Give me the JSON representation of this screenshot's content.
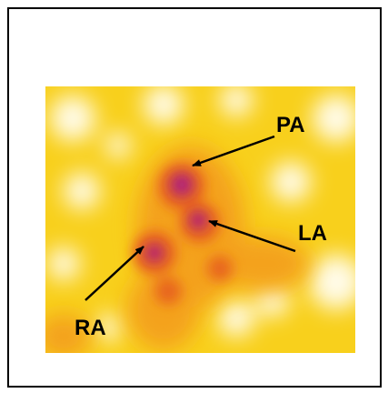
{
  "annotations": [
    {
      "label": "PA"
    },
    {
      "label": "LA"
    },
    {
      "label": "RA"
    }
  ]
}
